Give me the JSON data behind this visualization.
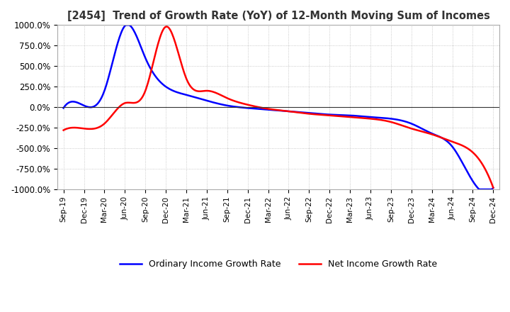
{
  "title": "[2454]  Trend of Growth Rate (YoY) of 12-Month Moving Sum of Incomes",
  "ylim": [
    -1000,
    1000
  ],
  "yticks": [
    -1000,
    -750,
    -500,
    -250,
    0,
    250,
    500,
    750,
    1000
  ],
  "ytick_labels": [
    "-1000.0%",
    "-750.0%",
    "-500.0%",
    "-250.0%",
    "0.0%",
    "250.0%",
    "500.0%",
    "750.0%",
    "1000.0%"
  ],
  "background_color": "#ffffff",
  "grid_color": "#aaaaaa",
  "line_color_ordinary": "#0000ff",
  "line_color_net": "#ff0000",
  "legend_ordinary": "Ordinary Income Growth Rate",
  "legend_net": "Net Income Growth Rate",
  "x_labels": [
    "Sep-19",
    "Dec-19",
    "Mar-20",
    "Jun-20",
    "Sep-20",
    "Dec-20",
    "Mar-21",
    "Jun-21",
    "Sep-21",
    "Dec-21",
    "Mar-22",
    "Jun-22",
    "Sep-22",
    "Dec-22",
    "Mar-23",
    "Jun-23",
    "Sep-23",
    "Dec-23",
    "Mar-24",
    "Jun-24",
    "Sep-24",
    "Dec-24"
  ],
  "ordinary_growth": [
    -10,
    20,
    200,
    990,
    600,
    250,
    150,
    80,
    20,
    -10,
    -30,
    -50,
    -70,
    -90,
    -100,
    -120,
    -140,
    -200,
    -320,
    -480,
    -900,
    -980
  ],
  "net_growth": [
    -280,
    -260,
    -200,
    50,
    200,
    980,
    350,
    200,
    110,
    30,
    -20,
    -50,
    -80,
    -100,
    -120,
    -140,
    -180,
    -260,
    -330,
    -420,
    -550,
    -980
  ]
}
